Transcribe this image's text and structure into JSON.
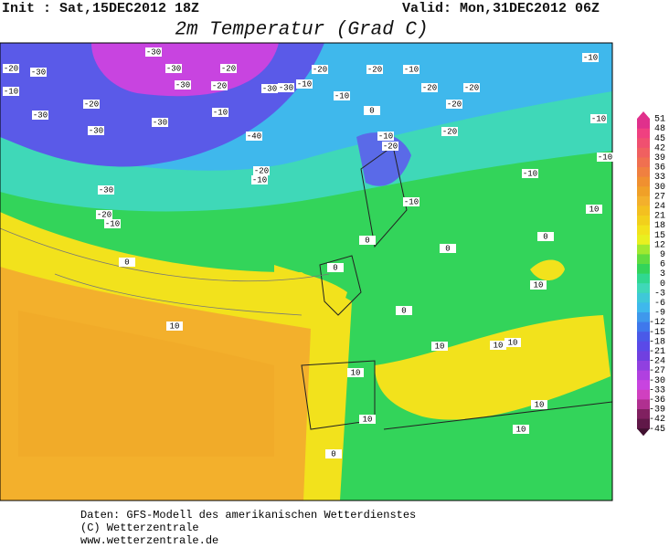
{
  "header": {
    "init": "Init : Sat,15DEC2012 18Z",
    "valid": "Valid: Mon,31DEC2012 06Z",
    "title": "2m Temperatur (Grad C)"
  },
  "colorbar": {
    "labels": [
      51,
      48,
      45,
      42,
      39,
      36,
      33,
      30,
      27,
      24,
      21,
      18,
      15,
      12,
      9,
      6,
      3,
      0,
      -3,
      -6,
      -9,
      -12,
      -15,
      -18,
      -21,
      -24,
      -27,
      -30,
      -33,
      -36,
      -39,
      -42,
      -45
    ]
  },
  "map": {
    "contour_labels": [
      -30,
      -20,
      -30,
      -10,
      -30,
      -20,
      -30,
      -20,
      -30,
      -30,
      -10,
      -20,
      -10,
      -20,
      -30,
      -30,
      -10,
      -20,
      -10,
      -20,
      -20,
      -20,
      -10,
      -10,
      0,
      -30,
      -40,
      -10,
      -20,
      -20,
      -10,
      -20,
      -10,
      -10,
      -30,
      -10,
      -20,
      -10,
      10,
      0,
      0,
      0,
      0,
      0,
      10,
      10,
      10,
      10,
      10,
      10,
      10,
      10,
      10,
      0,
      0
    ]
  },
  "footer": {
    "lines": [
      "Daten: GFS-Modell des amerikanischen Wetterdienstes",
      "(C) Wetterzentrale",
      "www.wetterzentrale.de"
    ]
  }
}
